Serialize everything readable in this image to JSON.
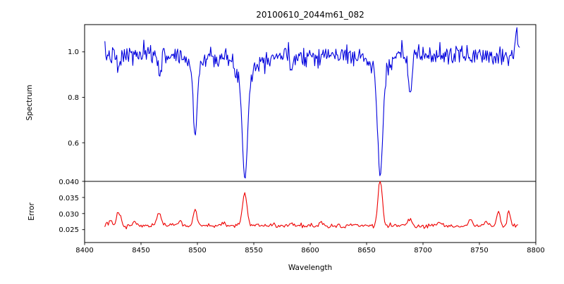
{
  "figure": {
    "title": "20100610_2044m61_082",
    "xlabel": "Wavelength"
  },
  "axis": {
    "xlim": [
      8400,
      8800
    ],
    "xticks": [
      8400,
      8450,
      8500,
      8550,
      8600,
      8650,
      8700,
      8750,
      8800
    ],
    "xtick_labels": [
      "8400",
      "8450",
      "8500",
      "8550",
      "8600",
      "8650",
      "8700",
      "8750",
      "8800"
    ]
  },
  "chart_data": [
    {
      "type": "line",
      "name": "spectrum",
      "ylabel": "Spectrum",
      "color": "#0000dd",
      "x_start": 8418,
      "x_end": 8786,
      "x_step": 0.75,
      "ylim": [
        0.43,
        1.12
      ],
      "yticks": [
        0.6,
        0.8,
        1.0
      ],
      "ytick_labels": [
        "0.6",
        "0.8",
        "1.0"
      ],
      "continuum": 0.985,
      "noise_sigma": 0.022,
      "noise_seed": 7,
      "absorption_lines": [
        {
          "center": 8498.0,
          "depth": 0.3,
          "width": 1.7,
          "wing_depth": 0.05,
          "wing_width": 6
        },
        {
          "center": 8542.1,
          "depth": 0.45,
          "width": 2.3,
          "wing_depth": 0.09,
          "wing_width": 9
        },
        {
          "center": 8662.1,
          "depth": 0.45,
          "width": 2.2,
          "wing_depth": 0.08,
          "wing_width": 8
        },
        {
          "center": 8688.6,
          "depth": 0.17,
          "width": 1.5
        },
        {
          "center": 8430.0,
          "depth": 0.07,
          "width": 1.4
        },
        {
          "center": 8467.0,
          "depth": 0.07,
          "width": 1.4
        },
        {
          "center": 8583.0,
          "depth": 0.06,
          "width": 1.3
        },
        {
          "center": 8783.0,
          "depth": -0.13,
          "width": 1.2
        }
      ]
    },
    {
      "type": "line",
      "name": "error",
      "ylabel": "Error",
      "color": "#ee0000",
      "x_start": 8418,
      "x_end": 8784,
      "x_step": 1.0,
      "ylim": [
        0.021,
        0.04
      ],
      "yticks": [
        0.025,
        0.03,
        0.035,
        0.04
      ],
      "ytick_labels": [
        "0.025",
        "0.030",
        "0.035",
        "0.040"
      ],
      "baseline": 0.0262,
      "noise_sigma": 0.00035,
      "noise_seed": 13,
      "peaks": [
        {
          "center": 8430,
          "height": 0.0043,
          "width": 1.8
        },
        {
          "center": 8466,
          "height": 0.004,
          "width": 1.8
        },
        {
          "center": 8498,
          "height": 0.005,
          "width": 1.6
        },
        {
          "center": 8542,
          "height": 0.01,
          "width": 2.0
        },
        {
          "center": 8662,
          "height": 0.0142,
          "width": 1.9
        },
        {
          "center": 8423,
          "height": 0.0016,
          "width": 1.5
        },
        {
          "center": 8445,
          "height": 0.0012,
          "width": 1.5
        },
        {
          "center": 8485,
          "height": 0.0015,
          "width": 1.5
        },
        {
          "center": 8523,
          "height": 0.0014,
          "width": 1.5
        },
        {
          "center": 8583,
          "height": 0.0013,
          "width": 1.5
        },
        {
          "center": 8610,
          "height": 0.001,
          "width": 1.5
        },
        {
          "center": 8688,
          "height": 0.0022,
          "width": 1.6
        },
        {
          "center": 8715,
          "height": 0.0012,
          "width": 1.5
        },
        {
          "center": 8742,
          "height": 0.0018,
          "width": 1.5
        },
        {
          "center": 8756,
          "height": 0.0014,
          "width": 1.5
        },
        {
          "center": 8767,
          "height": 0.0042,
          "width": 1.5
        },
        {
          "center": 8776,
          "height": 0.0048,
          "width": 1.4
        }
      ]
    }
  ]
}
